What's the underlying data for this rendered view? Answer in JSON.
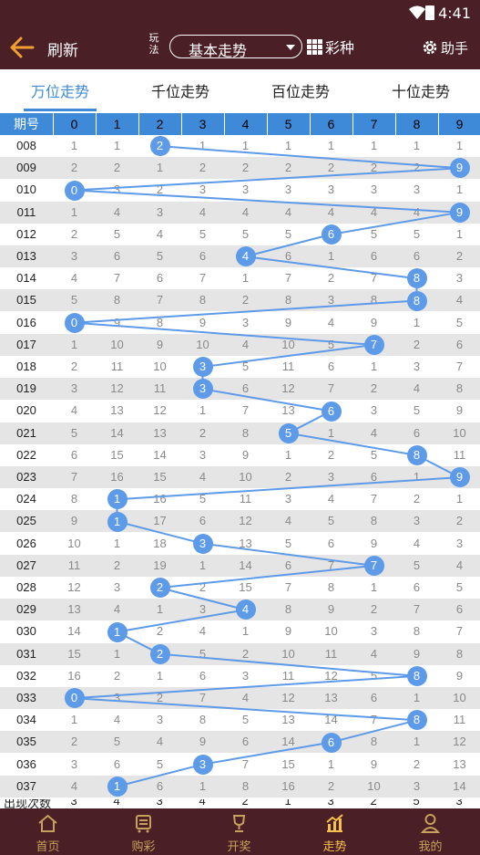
{
  "status": {
    "time": "4:41"
  },
  "header": {
    "refresh": "刷新",
    "wanfa_label": "玩法",
    "select_value": "基本走势",
    "caizhong": "彩种",
    "helper": "助手"
  },
  "tabs": [
    {
      "label": "万位走势",
      "active": true
    },
    {
      "label": "千位走势",
      "active": false
    },
    {
      "label": "百位走势",
      "active": false
    },
    {
      "label": "十位走势",
      "active": false
    }
  ],
  "table": {
    "col_header": "期号",
    "digits": [
      "0",
      "1",
      "2",
      "3",
      "4",
      "5",
      "6",
      "7",
      "8",
      "9"
    ],
    "rows": [
      {
        "issue": "008",
        "win": 2,
        "cells": [
          1,
          1,
          2,
          1,
          1,
          1,
          1,
          1,
          1,
          1
        ]
      },
      {
        "issue": "009",
        "win": 9,
        "cells": [
          2,
          2,
          1,
          2,
          2,
          2,
          2,
          2,
          2,
          9
        ]
      },
      {
        "issue": "010",
        "win": 0,
        "cells": [
          0,
          3,
          2,
          3,
          3,
          3,
          3,
          3,
          3,
          1
        ]
      },
      {
        "issue": "011",
        "win": 9,
        "cells": [
          1,
          4,
          3,
          4,
          4,
          4,
          4,
          4,
          4,
          9
        ]
      },
      {
        "issue": "012",
        "win": 6,
        "cells": [
          2,
          5,
          4,
          5,
          5,
          5,
          6,
          5,
          5,
          1
        ]
      },
      {
        "issue": "013",
        "win": 4,
        "cells": [
          3,
          6,
          5,
          6,
          4,
          6,
          1,
          6,
          6,
          2
        ]
      },
      {
        "issue": "014",
        "win": 8,
        "cells": [
          4,
          7,
          6,
          7,
          1,
          7,
          2,
          7,
          8,
          3
        ]
      },
      {
        "issue": "015",
        "win": 8,
        "cells": [
          5,
          8,
          7,
          8,
          2,
          8,
          3,
          8,
          8,
          4
        ]
      },
      {
        "issue": "016",
        "win": 0,
        "cells": [
          0,
          9,
          8,
          9,
          3,
          9,
          4,
          9,
          1,
          5
        ]
      },
      {
        "issue": "017",
        "win": 7,
        "cells": [
          1,
          10,
          9,
          10,
          4,
          10,
          5,
          7,
          2,
          6
        ]
      },
      {
        "issue": "018",
        "win": 3,
        "cells": [
          2,
          11,
          10,
          3,
          5,
          11,
          6,
          1,
          3,
          7
        ]
      },
      {
        "issue": "019",
        "win": 3,
        "cells": [
          3,
          12,
          11,
          3,
          6,
          12,
          7,
          2,
          4,
          8
        ]
      },
      {
        "issue": "020",
        "win": 6,
        "cells": [
          4,
          13,
          12,
          1,
          7,
          13,
          6,
          3,
          5,
          9
        ]
      },
      {
        "issue": "021",
        "win": 5,
        "cells": [
          5,
          14,
          13,
          2,
          8,
          5,
          1,
          4,
          6,
          10
        ]
      },
      {
        "issue": "022",
        "win": 8,
        "cells": [
          6,
          15,
          14,
          3,
          9,
          1,
          2,
          5,
          8,
          11
        ]
      },
      {
        "issue": "023",
        "win": 9,
        "cells": [
          7,
          16,
          15,
          4,
          10,
          2,
          3,
          6,
          1,
          9
        ]
      },
      {
        "issue": "024",
        "win": 1,
        "cells": [
          8,
          1,
          16,
          5,
          11,
          3,
          4,
          7,
          2,
          1
        ]
      },
      {
        "issue": "025",
        "win": 1,
        "cells": [
          9,
          1,
          17,
          6,
          12,
          4,
          5,
          8,
          3,
          2
        ]
      },
      {
        "issue": "026",
        "win": 3,
        "cells": [
          10,
          1,
          18,
          3,
          13,
          5,
          6,
          9,
          4,
          3
        ]
      },
      {
        "issue": "027",
        "win": 7,
        "cells": [
          11,
          2,
          19,
          1,
          14,
          6,
          7,
          7,
          5,
          4
        ]
      },
      {
        "issue": "028",
        "win": 2,
        "cells": [
          12,
          3,
          2,
          2,
          15,
          7,
          8,
          1,
          6,
          5
        ]
      },
      {
        "issue": "029",
        "win": 4,
        "cells": [
          13,
          4,
          1,
          3,
          4,
          8,
          9,
          2,
          7,
          6
        ]
      },
      {
        "issue": "030",
        "win": 1,
        "cells": [
          14,
          1,
          2,
          4,
          1,
          9,
          10,
          3,
          8,
          7
        ]
      },
      {
        "issue": "031",
        "win": 2,
        "cells": [
          15,
          1,
          2,
          5,
          2,
          10,
          11,
          4,
          9,
          8
        ]
      },
      {
        "issue": "032",
        "win": 8,
        "cells": [
          16,
          2,
          1,
          6,
          3,
          11,
          12,
          5,
          8,
          9
        ]
      },
      {
        "issue": "033",
        "win": 0,
        "cells": [
          0,
          3,
          2,
          7,
          4,
          12,
          13,
          6,
          1,
          10
        ]
      },
      {
        "issue": "034",
        "win": 8,
        "cells": [
          1,
          4,
          3,
          8,
          5,
          13,
          14,
          7,
          8,
          11
        ]
      },
      {
        "issue": "035",
        "win": 6,
        "cells": [
          2,
          5,
          4,
          9,
          6,
          14,
          6,
          8,
          1,
          12
        ]
      },
      {
        "issue": "036",
        "win": 3,
        "cells": [
          3,
          6,
          5,
          3,
          7,
          15,
          1,
          9,
          2,
          13
        ]
      },
      {
        "issue": "037",
        "win": 1,
        "cells": [
          4,
          1,
          6,
          1,
          8,
          16,
          2,
          10,
          3,
          14
        ]
      }
    ],
    "partial_row": {
      "label": "出现次数",
      "cells": [
        "3",
        "4",
        "3",
        "4",
        "2",
        "1",
        "3",
        "2",
        "5",
        "3"
      ]
    }
  },
  "nav": [
    {
      "label": "首页",
      "icon": "home-icon",
      "active": false
    },
    {
      "label": "购彩",
      "icon": "cart-icon",
      "active": false
    },
    {
      "label": "开奖",
      "icon": "trophy-icon",
      "active": false
    },
    {
      "label": "走势",
      "icon": "chart-icon",
      "active": true
    },
    {
      "label": "我的",
      "icon": "user-icon",
      "active": false
    }
  ],
  "colors": {
    "header_bg": "#4a1f26",
    "accent": "#3f8ad8",
    "ball": "#5d9ae8",
    "nav_inactive": "#c6a15b",
    "nav_active": "#f6c34a"
  }
}
